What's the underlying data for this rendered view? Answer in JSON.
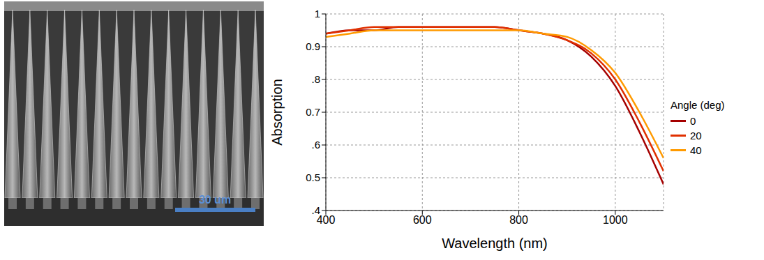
{
  "image": {
    "scale_bar": "30 um"
  },
  "chart_data": {
    "type": "line",
    "xlabel": "Wavelength (nm)",
    "ylabel": "Absorption",
    "angle_label": "Angle (deg)",
    "x": [
      400,
      450,
      500,
      550,
      600,
      650,
      700,
      750,
      800,
      850,
      900,
      950,
      1000,
      1050,
      1100
    ],
    "series": [
      {
        "name": "0",
        "color": "#a50000",
        "values": [
          0.94,
          0.95,
          0.95,
          0.96,
          0.96,
          0.96,
          0.96,
          0.96,
          0.95,
          0.94,
          0.92,
          0.87,
          0.78,
          0.64,
          0.48
        ]
      },
      {
        "name": "20",
        "color": "#e03000",
        "values": [
          0.94,
          0.95,
          0.96,
          0.96,
          0.96,
          0.96,
          0.96,
          0.96,
          0.95,
          0.94,
          0.92,
          0.88,
          0.8,
          0.67,
          0.52
        ]
      },
      {
        "name": "40",
        "color": "#ff9a00",
        "values": [
          0.93,
          0.94,
          0.95,
          0.95,
          0.95,
          0.95,
          0.95,
          0.95,
          0.95,
          0.94,
          0.93,
          0.89,
          0.82,
          0.7,
          0.56
        ]
      }
    ],
    "xlim": [
      400,
      1100
    ],
    "xticks": [
      400,
      600,
      800,
      1000
    ],
    "ylim": [
      0.4,
      1
    ],
    "yticks": [
      {
        "value": 0.4,
        "label": ".4"
      },
      {
        "value": 0.5,
        "label": "0.5"
      },
      {
        "value": 0.6,
        "label": ".6"
      },
      {
        "value": 0.7,
        "label": "0.7"
      },
      {
        "value": 0.8,
        "label": ".8"
      },
      {
        "value": 0.9,
        "label": "0.9"
      },
      {
        "value": 1,
        "label": "1"
      }
    ],
    "grid": true,
    "legend": "right",
    "line_style": "solid"
  }
}
